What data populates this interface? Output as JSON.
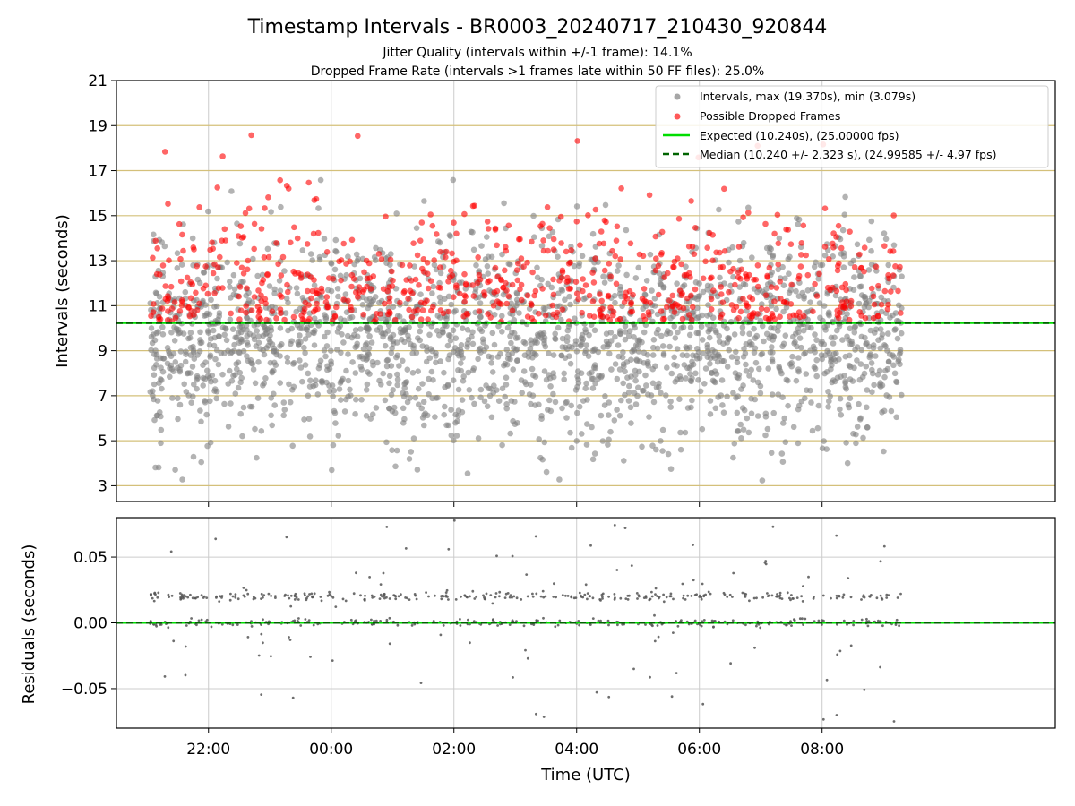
{
  "figure": {
    "title": "Timestamp Intervals - BR0003_20240717_210430_920844",
    "subtitle_1": "Jitter Quality (intervals within +/-1 frame): 14.1%",
    "subtitle_2": "Dropped Frame Rate (intervals >1 frames late within 50 FF files): 25.0%"
  },
  "colors": {
    "interval_points": "#808080",
    "dropped_points": "#ff0000",
    "expected_line": "#00dd00",
    "median_line": "#006400",
    "hgrid_top": "#d4c07a",
    "grid": "#cccccc",
    "residual_points": "#555555"
  },
  "chart_data": [
    {
      "type": "scatter",
      "panel": "top",
      "ylabel": "Intervals (seconds)",
      "ylim": [
        2.3,
        21
      ],
      "xlim_hours": [
        20.5,
        35.8
      ],
      "yticks": [
        "3",
        "5",
        "7",
        "9",
        "11",
        "13",
        "15",
        "17",
        "19",
        "21"
      ],
      "ytick_values": [
        3,
        5,
        7,
        9,
        11,
        13,
        15,
        17,
        19,
        21
      ],
      "x_range_hours": [
        21.05,
        33.3
      ],
      "legend_position": "upper right",
      "series": [
        {
          "name": "Intervals, max (19.370s), min (3.079s)",
          "kind": "points",
          "color": "#808080",
          "count": 2200,
          "min": 3.079,
          "max": 19.37,
          "center": 9.5
        },
        {
          "name": "Possible Dropped Frames",
          "kind": "points",
          "color": "#ff0000",
          "count": 700,
          "min": 10.2,
          "max": 18.7
        },
        {
          "name": "Expected (10.240s), (25.00000 fps)",
          "kind": "hline",
          "value": 10.24,
          "color": "#00dd00"
        },
        {
          "name": "Median (10.240 +/- 2.323 s), (24.99585 +/- 4.97 fps)",
          "kind": "hline",
          "value": 10.24,
          "color": "#006400",
          "dashed": true
        }
      ],
      "grid": "horizontal-colored-and-vertical"
    },
    {
      "type": "scatter",
      "panel": "bottom",
      "xlabel": "Time (UTC)",
      "ylabel": "Residuals (seconds)",
      "ylim": [
        -0.08,
        0.08
      ],
      "xlim_hours": [
        20.5,
        35.8
      ],
      "yticks": [
        "0.05",
        "0.00",
        "−0.05"
      ],
      "ytick_values": [
        0.05,
        0.0,
        -0.05
      ],
      "xticks": [
        "22:00",
        "00:00",
        "02:00",
        "04:00",
        "06:00",
        "08:00"
      ],
      "xtick_values_hours": [
        22,
        24,
        26,
        28,
        30,
        32
      ],
      "series": [
        {
          "name": "Residuals",
          "kind": "points",
          "color": "#555555",
          "count": 650,
          "bands": [
            0.0,
            0.02
          ],
          "min": -0.075,
          "max": 0.078
        },
        {
          "name": "Zero",
          "kind": "hline",
          "value": 0.0,
          "color": "#00dd00",
          "dashed": true
        }
      ],
      "grid": "both"
    }
  ]
}
